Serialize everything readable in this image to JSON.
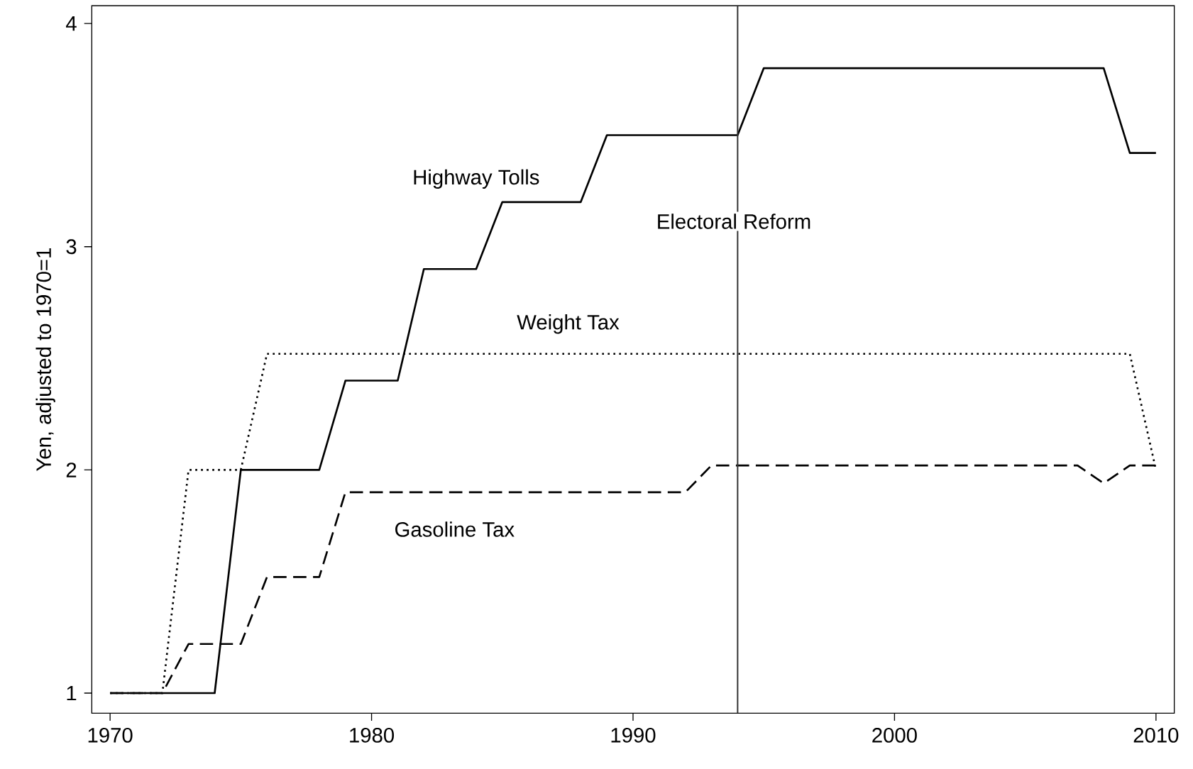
{
  "chart_data": {
    "type": "line",
    "ylabel": "Yen, adjusted to 1970=1",
    "x": [
      1970,
      1971,
      1972,
      1973,
      1974,
      1975,
      1976,
      1977,
      1978,
      1979,
      1980,
      1981,
      1982,
      1983,
      1984,
      1985,
      1986,
      1987,
      1988,
      1989,
      1990,
      1991,
      1992,
      1993,
      1994,
      1995,
      1996,
      1997,
      1998,
      1999,
      2000,
      2001,
      2002,
      2003,
      2004,
      2005,
      2006,
      2007,
      2008,
      2009,
      2010
    ],
    "series": [
      {
        "name": "Highway Tolls",
        "color": "#000000",
        "line_style": "solid",
        "values": [
          1,
          1,
          1,
          1,
          1,
          2,
          2,
          2,
          2,
          2.4,
          2.4,
          2.4,
          2.9,
          2.9,
          2.9,
          3.2,
          3.2,
          3.2,
          3.2,
          3.5,
          3.5,
          3.5,
          3.5,
          3.5,
          3.5,
          3.8,
          3.8,
          3.8,
          3.8,
          3.8,
          3.8,
          3.8,
          3.8,
          3.8,
          3.8,
          3.8,
          3.8,
          3.8,
          3.8,
          3.42,
          3.42
        ]
      },
      {
        "name": "Weight Tax",
        "color": "#000000",
        "line_style": "dotted",
        "values": [
          1,
          1,
          1,
          2,
          2,
          2,
          2.52,
          2.52,
          2.52,
          2.52,
          2.52,
          2.52,
          2.52,
          2.52,
          2.52,
          2.52,
          2.52,
          2.52,
          2.52,
          2.52,
          2.52,
          2.52,
          2.52,
          2.52,
          2.52,
          2.52,
          2.52,
          2.52,
          2.52,
          2.52,
          2.52,
          2.52,
          2.52,
          2.52,
          2.52,
          2.52,
          2.52,
          2.52,
          2.52,
          2.52,
          2
        ]
      },
      {
        "name": "Gasoline Tax",
        "color": "#000000",
        "line_style": "dashed",
        "values": [
          1,
          1,
          1,
          1.22,
          1.22,
          1.22,
          1.52,
          1.52,
          1.52,
          1.9,
          1.9,
          1.9,
          1.9,
          1.9,
          1.9,
          1.9,
          1.9,
          1.9,
          1.9,
          1.9,
          1.9,
          1.9,
          1.9,
          2.02,
          2.02,
          2.02,
          2.02,
          2.02,
          2.02,
          2.02,
          2.02,
          2.02,
          2.02,
          2.02,
          2.02,
          2.02,
          2.02,
          2.02,
          1.94,
          2.02,
          2.02
        ]
      }
    ],
    "ref_lines": [
      {
        "axis": "x",
        "value": 1994,
        "label": "Electoral Reform",
        "color": "#333333"
      }
    ],
    "xlim": [
      1969.3,
      2010.7
    ],
    "ylim": [
      0.91,
      4.08
    ],
    "xticks": [
      1970,
      1980,
      1990,
      2000,
      2010
    ],
    "yticks": [
      1,
      2,
      3,
      4
    ],
    "grid": false,
    "marker": "none"
  }
}
